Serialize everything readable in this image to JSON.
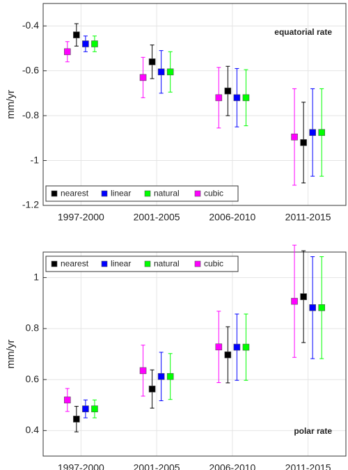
{
  "chart_data": [
    {
      "type": "errorbar",
      "annotation": "equatorial rate",
      "ylabel": "mm/yr",
      "categories": [
        "1997-2000",
        "2001-2005",
        "2006-2010",
        "2011-2015"
      ],
      "ylim": [
        -1.2,
        -0.3
      ],
      "yticks": [
        -1.2,
        -1,
        -0.8,
        -0.6,
        -0.4
      ],
      "grid": true,
      "legend": "lower-left",
      "series": [
        {
          "name": "nearest",
          "color": "#000000",
          "values": [
            -0.44,
            -0.56,
            -0.69,
            -0.92
          ],
          "errors": [
            0.05,
            0.075,
            0.11,
            0.18
          ]
        },
        {
          "name": "linear",
          "color": "#0000ff",
          "values": [
            -0.48,
            -0.605,
            -0.72,
            -0.875
          ],
          "errors": [
            0.035,
            0.095,
            0.13,
            0.195
          ]
        },
        {
          "name": "natural",
          "color": "#00ff00",
          "values": [
            -0.48,
            -0.605,
            -0.72,
            -0.875
          ],
          "errors": [
            0.035,
            0.09,
            0.125,
            0.195
          ]
        },
        {
          "name": "cubic",
          "color": "#ff00ff",
          "values": [
            -0.515,
            -0.63,
            -0.72,
            -0.895
          ],
          "errors": [
            0.045,
            0.09,
            0.135,
            0.215
          ]
        }
      ]
    },
    {
      "type": "errorbar",
      "annotation": "polar rate",
      "ylabel": "mm/yr",
      "categories": [
        "1997-2000",
        "2001-2005",
        "2006-2010",
        "2011-2015"
      ],
      "ylim": [
        0.3,
        1.1
      ],
      "yticks": [
        0.4,
        0.6,
        0.8,
        1
      ],
      "grid": true,
      "legend": "upper-left",
      "series": [
        {
          "name": "nearest",
          "color": "#000000",
          "values": [
            0.445,
            0.563,
            0.697,
            0.925
          ],
          "errors": [
            0.05,
            0.075,
            0.11,
            0.18
          ]
        },
        {
          "name": "linear",
          "color": "#0000ff",
          "values": [
            0.485,
            0.612,
            0.727,
            0.882
          ],
          "errors": [
            0.035,
            0.095,
            0.13,
            0.2
          ]
        },
        {
          "name": "natural",
          "color": "#00ff00",
          "values": [
            0.485,
            0.612,
            0.727,
            0.882
          ],
          "errors": [
            0.035,
            0.09,
            0.13,
            0.2
          ]
        },
        {
          "name": "cubic",
          "color": "#ff00ff",
          "values": [
            0.52,
            0.635,
            0.728,
            0.907
          ],
          "errors": [
            0.045,
            0.1,
            0.14,
            0.22
          ]
        }
      ]
    }
  ]
}
